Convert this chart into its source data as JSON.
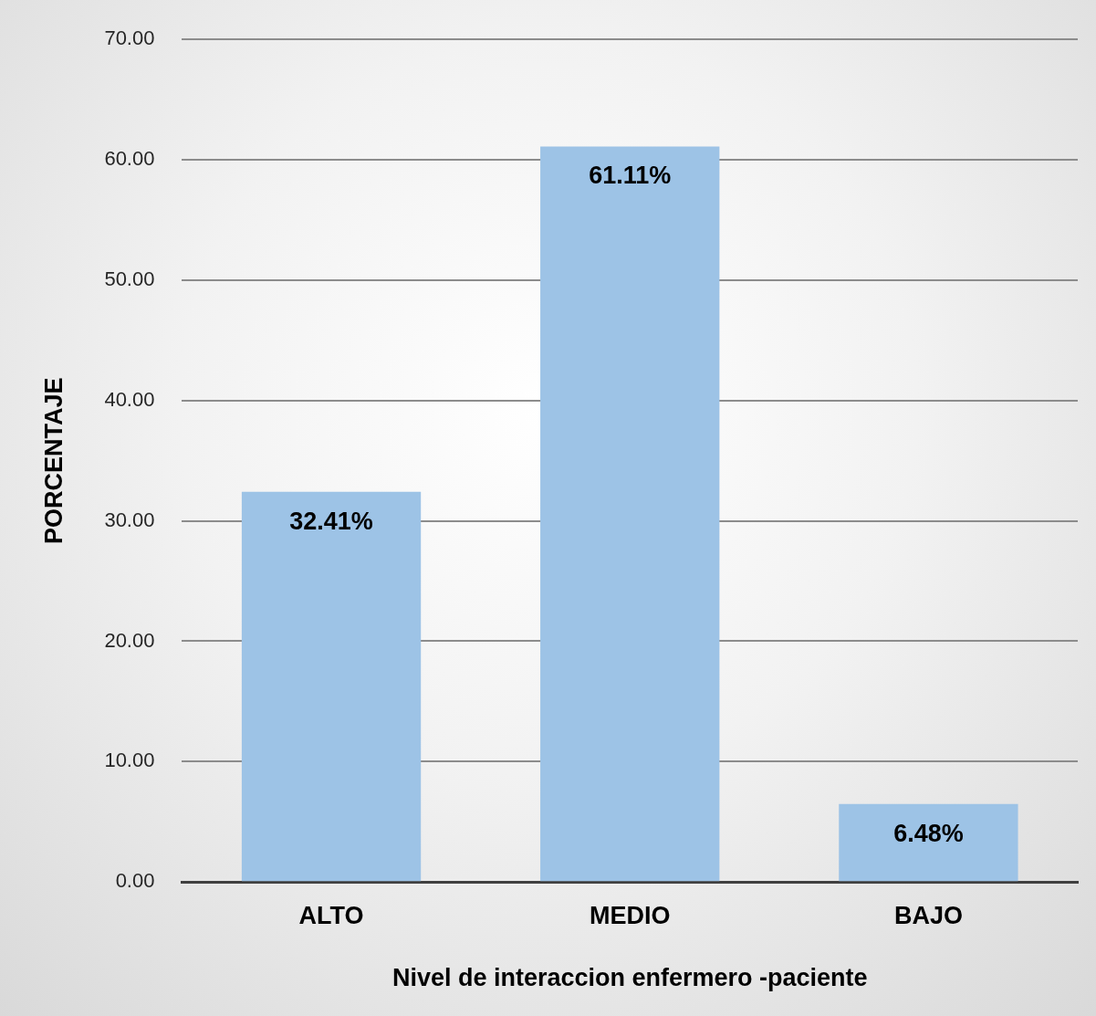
{
  "chart_data": {
    "type": "bar",
    "xlabel": "Nivel de interaccion enfermero -paciente",
    "ylabel": "PORCENTAJE",
    "categories": [
      "ALTO",
      "MEDIO",
      "BAJO"
    ],
    "values": [
      32.41,
      61.11,
      6.48
    ],
    "color": "#9dc3e6",
    "value_labels": [
      "32.41%",
      "61.11%",
      "6.48%"
    ],
    "ylim": [
      0,
      70
    ],
    "yticks": [
      {
        "value": 0,
        "label": "0.00"
      },
      {
        "value": 10,
        "label": "10.00"
      },
      {
        "value": 20,
        "label": "20.00"
      },
      {
        "value": 30,
        "label": "30.00"
      },
      {
        "value": 40,
        "label": "40.00"
      },
      {
        "value": 50,
        "label": "50.00"
      },
      {
        "value": 60,
        "label": "60.00"
      },
      {
        "value": 70,
        "label": "70.00"
      }
    ],
    "grid": "y",
    "legend": false
  }
}
